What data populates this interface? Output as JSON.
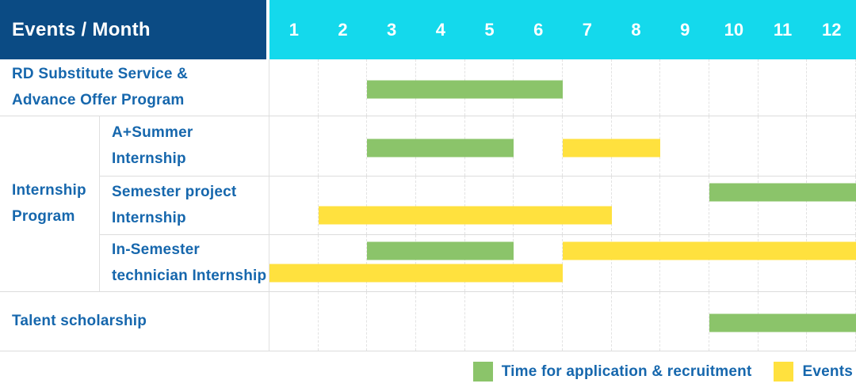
{
  "header": {
    "title": "Events / Month",
    "months": [
      "1",
      "2",
      "3",
      "4",
      "5",
      "6",
      "7",
      "8",
      "9",
      "10",
      "11",
      "12"
    ]
  },
  "group_label": "Internship\nProgram",
  "rows": [
    {
      "label": "RD Substitute Service &\nAdvance Offer Program",
      "bars": [
        {
          "type": "recruitment",
          "start_month": 3,
          "end_month": 6,
          "lane": "single"
        }
      ]
    },
    {
      "label": "A+Summer\nInternship",
      "bars": [
        {
          "type": "recruitment",
          "start_month": 3,
          "end_month": 5,
          "lane": "single"
        },
        {
          "type": "events",
          "start_month": 7,
          "end_month": 8,
          "lane": "single"
        }
      ]
    },
    {
      "label": "Semester project\nInternship",
      "bars": [
        {
          "type": "recruitment",
          "start_month": 10,
          "end_month": 12,
          "lane": "top"
        },
        {
          "type": "events",
          "start_month": 2,
          "end_month": 7,
          "lane": "bottom"
        }
      ]
    },
    {
      "label": "In-Semester\ntechnician Internship",
      "bars": [
        {
          "type": "recruitment",
          "start_month": 3,
          "end_month": 5,
          "lane": "top"
        },
        {
          "type": "events",
          "start_month": 7,
          "end_month": 12,
          "lane": "top"
        },
        {
          "type": "events",
          "start_month": 1,
          "end_month": 6,
          "lane": "bottom"
        }
      ]
    },
    {
      "label": "Talent scholarship",
      "bars": [
        {
          "type": "recruitment",
          "start_month": 10,
          "end_month": 12,
          "lane": "single"
        }
      ]
    }
  ],
  "legend": [
    {
      "type": "recruitment",
      "label": "Time for application & recruitment"
    },
    {
      "type": "events",
      "label": "Events"
    }
  ],
  "colors": {
    "header_bg": "#0b4b84",
    "months_bg": "#14d9ec",
    "header_text": "#ffffff",
    "label_text": "#1667ad",
    "recruitment": "#8bc46a",
    "events": "#ffe13e"
  },
  "chart_data": {
    "type": "table",
    "title": "Events / Month",
    "x": {
      "label": "Month",
      "ticks": [
        "1",
        "2",
        "3",
        "4",
        "5",
        "6",
        "7",
        "8",
        "9",
        "10",
        "11",
        "12"
      ],
      "range": [
        1,
        12
      ]
    },
    "legend_entries": [
      "Time for application & recruitment",
      "Events"
    ],
    "legend_position": "bottom-right",
    "grid": true,
    "series": [
      {
        "name": "RD Substitute Service & Advance Offer Program",
        "group": null,
        "spans": [
          {
            "category": "Time for application & recruitment",
            "start_month": 3,
            "end_month": 6
          }
        ]
      },
      {
        "name": "A+Summer Internship",
        "group": "Internship Program",
        "spans": [
          {
            "category": "Time for application & recruitment",
            "start_month": 3,
            "end_month": 5
          },
          {
            "category": "Events",
            "start_month": 7,
            "end_month": 8
          }
        ]
      },
      {
        "name": "Semester project Internship",
        "group": "Internship Program",
        "spans": [
          {
            "category": "Time for application & recruitment",
            "start_month": 10,
            "end_month": 12
          },
          {
            "category": "Events",
            "start_month": 2,
            "end_month": 7
          }
        ]
      },
      {
        "name": "In-Semester technician Internship",
        "group": "Internship Program",
        "spans": [
          {
            "category": "Time for application & recruitment",
            "start_month": 3,
            "end_month": 5
          },
          {
            "category": "Events",
            "start_month": 7,
            "end_month": 12
          },
          {
            "category": "Events",
            "start_month": 1,
            "end_month": 6
          }
        ]
      },
      {
        "name": "Talent scholarship",
        "group": null,
        "spans": [
          {
            "category": "Time for application & recruitment",
            "start_month": 10,
            "end_month": 12
          }
        ]
      }
    ]
  }
}
